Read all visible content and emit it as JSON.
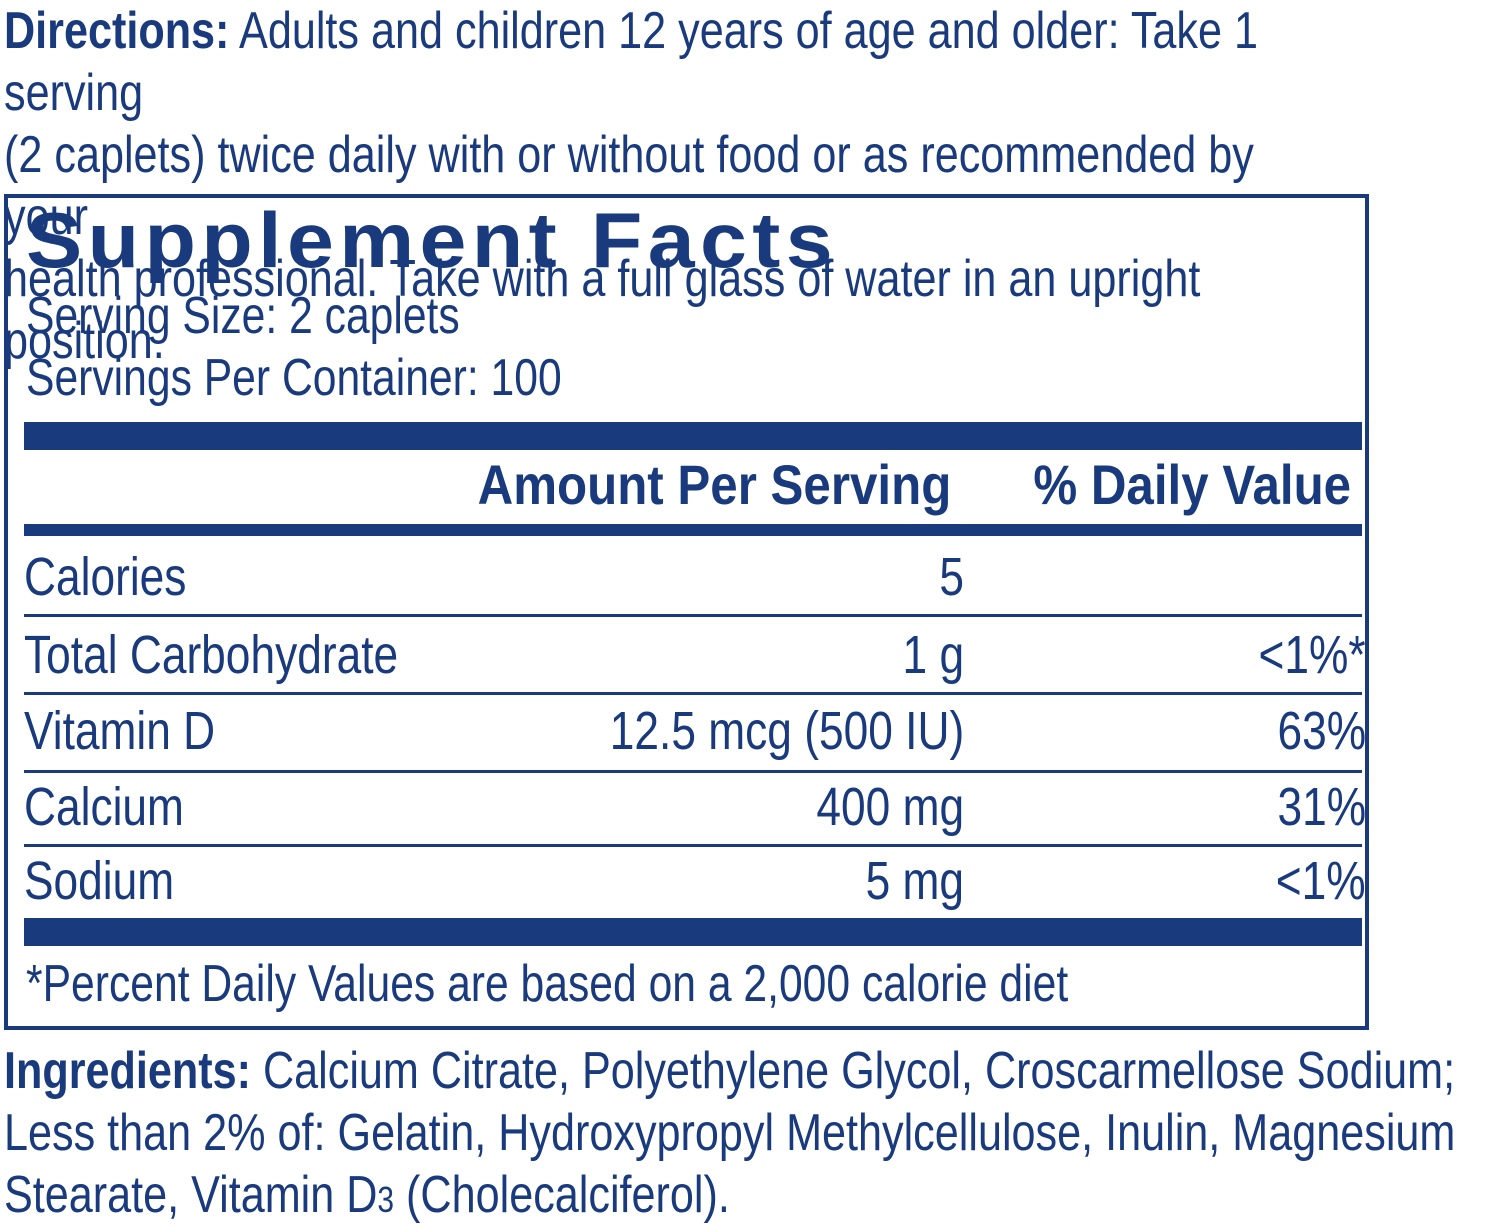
{
  "directions": {
    "label": "Directions:",
    "lines": [
      " Adults and children 12 years of age and older: Take 1 serving",
      "(2 caplets) twice daily with or without food or as recommended by your",
      "health professional. Take with a full glass of water in an upright position."
    ]
  },
  "facts": {
    "title": "Supplement Facts",
    "serving_size": "Serving Size: 2 caplets",
    "servings_per_container": "Servings Per Container: 100",
    "header_amount": "Amount Per Serving",
    "header_dv": "% Daily Value",
    "rows": [
      {
        "name": "Calories",
        "amount": "5",
        "dv": ""
      },
      {
        "name": "Total Carbohydrate",
        "amount": "1 g",
        "dv": "<1%*"
      },
      {
        "name": "Vitamin D",
        "amount": "12.5 mcg (500 IU)",
        "dv": "63%"
      },
      {
        "name": "Calcium",
        "amount": "400 mg",
        "dv": "31%"
      },
      {
        "name": "Sodium",
        "amount": "5 mg",
        "dv": "<1%"
      }
    ],
    "footnote": "*Percent Daily Values are based on a 2,000 calorie diet"
  },
  "ingredients": {
    "label": "Ingredients:",
    "line1": " Calcium Citrate, Polyethylene Glycol, Croscarmellose Sodium;",
    "line2": "Less than 2% of: Gelatin, Hydroxypropyl Methylcellulose, Inulin, Magnesium",
    "line3_before": "Stearate, Vitamin D",
    "line3_sub": "3",
    "line3_after": " (Cholecalciferol)."
  },
  "colors": {
    "ink": "#1a3a7e",
    "background": "#ffffff"
  }
}
